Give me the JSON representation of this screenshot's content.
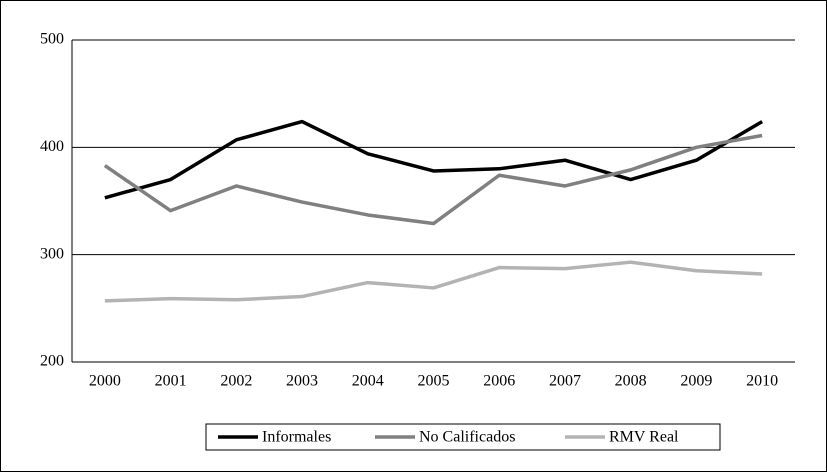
{
  "chart_data": {
    "type": "line",
    "categories": [
      "2000",
      "2001",
      "2002",
      "2003",
      "2004",
      "2005",
      "2006",
      "2007",
      "2008",
      "2009",
      "2010"
    ],
    "series": [
      {
        "name": "Informales",
        "color": "#000000",
        "values": [
          353,
          370,
          407,
          424,
          394,
          378,
          380,
          388,
          370,
          388,
          424
        ]
      },
      {
        "name": "No Calificados",
        "color": "#808080",
        "values": [
          383,
          341,
          364,
          349,
          337,
          329,
          374,
          364,
          379,
          400,
          411
        ]
      },
      {
        "name": "RMV Real",
        "color": "#b3b3b3",
        "values": [
          257,
          259,
          258,
          261,
          274,
          269,
          288,
          287,
          293,
          285,
          282
        ]
      }
    ],
    "ylim": [
      200,
      500
    ],
    "yticks": [
      200,
      300,
      400,
      500
    ],
    "grid": true,
    "legend": "bottom"
  }
}
